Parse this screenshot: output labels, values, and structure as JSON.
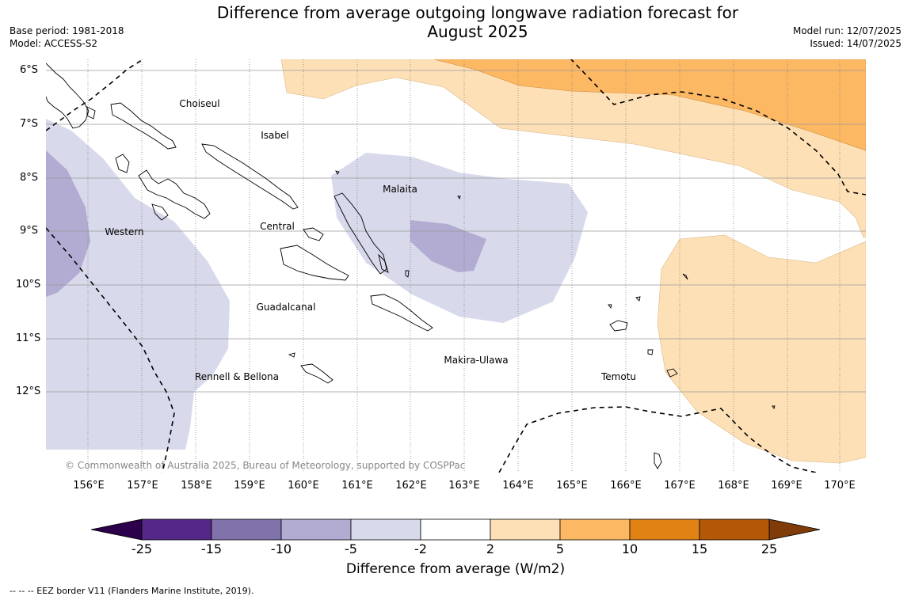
{
  "header": {
    "title_line1": "Difference from average outgoing longwave radiation forecast for",
    "title_line2": "August 2025",
    "base_period": "Base period: 1981-2018",
    "model": "Model: ACCESS-S2",
    "model_run": "Model run: 12/07/2025",
    "issued": "Issued: 14/07/2025"
  },
  "map": {
    "lat_labels": [
      "6°S",
      "7°S",
      "8°S",
      "9°S",
      "10°S",
      "11°S",
      "12°S"
    ],
    "lon_labels": [
      "156°E",
      "157°E",
      "158°E",
      "159°E",
      "160°E",
      "161°E",
      "162°E",
      "163°E",
      "164°E",
      "165°E",
      "166°E",
      "167°E",
      "168°E",
      "169°E",
      "170°E"
    ],
    "provinces": [
      "Choiseul",
      "Isabel",
      "Malaita",
      "Western",
      "Central",
      "Guadalcanal",
      "Makira-Ulawa",
      "Rennell & Bellona",
      "Temotu"
    ],
    "copyright": "© Commonwealth of Australia 2025, Bureau of Meteorology, supported by COSPPac"
  },
  "colorbar": {
    "title": "Difference from average (W/m2)",
    "ticks": [
      "-25",
      "-15",
      "-10",
      "-5",
      "-2",
      "2",
      "5",
      "10",
      "15",
      "25"
    ],
    "colors": [
      "#542788",
      "#8073ac",
      "#b2abd2",
      "#d8daeb",
      "#ffffff",
      "#fee0b6",
      "#fdb863",
      "#e08214",
      "#b35806"
    ],
    "under_color": "#2d004b",
    "over_color": "#7f3b08"
  },
  "legend": {
    "eez_note": "--  --  -- EEZ border V11 (Flanders Marine Institute, 2019)."
  }
}
